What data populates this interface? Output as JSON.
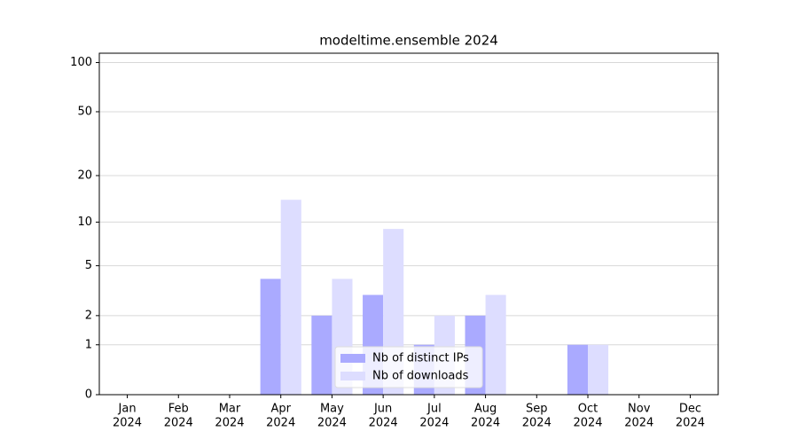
{
  "chart_data": {
    "type": "bar",
    "title": "modeltime.ensemble 2024",
    "categories": [
      [
        "Jan",
        "2024"
      ],
      [
        "Feb",
        "2024"
      ],
      [
        "Mar",
        "2024"
      ],
      [
        "Apr",
        "2024"
      ],
      [
        "May",
        "2024"
      ],
      [
        "Jun",
        "2024"
      ],
      [
        "Jul",
        "2024"
      ],
      [
        "Aug",
        "2024"
      ],
      [
        "Sep",
        "2024"
      ],
      [
        "Oct",
        "2024"
      ],
      [
        "Nov",
        "2024"
      ],
      [
        "Dec",
        "2024"
      ]
    ],
    "series": [
      {
        "name": "Nb of distinct IPs",
        "color": "#aaaaff",
        "values": [
          0,
          0,
          0,
          4,
          2,
          3,
          1,
          2,
          0,
          1,
          0,
          0
        ]
      },
      {
        "name": "Nb of downloads",
        "color": "#ddddff",
        "values": [
          0,
          0,
          0,
          14,
          4,
          9,
          2,
          3,
          0,
          1,
          0,
          0
        ]
      }
    ],
    "yscale": "log1p",
    "ylim": [
      0,
      114
    ],
    "yticks": [
      0,
      1,
      2,
      5,
      10,
      20,
      50,
      100
    ],
    "grid": true,
    "legend": "lower center"
  }
}
